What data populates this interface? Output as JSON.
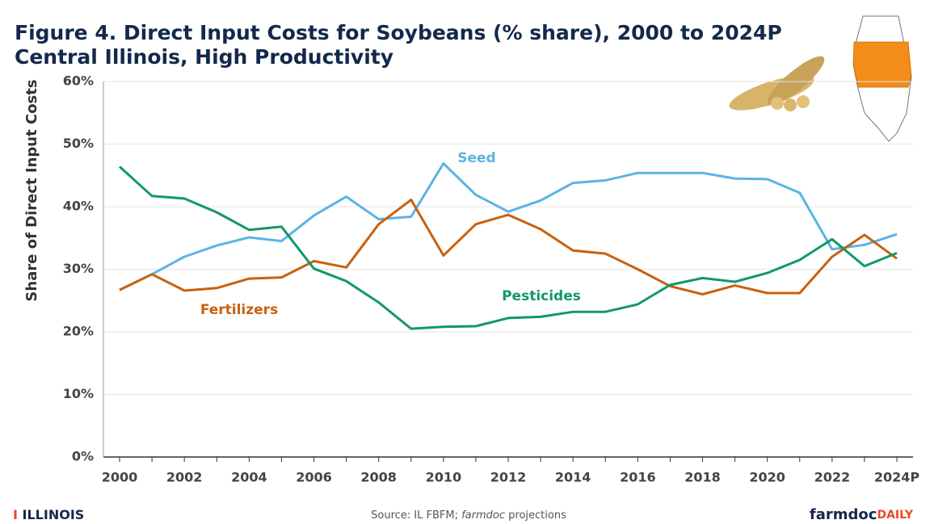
{
  "chart_data": {
    "type": "line",
    "title": "Figure 4. Direct Input Costs for Soybeans (% share), 2000 to 2024P",
    "subtitle": "Central Illinois, High Productivity",
    "y_label": "Share of Direct Input Costs",
    "categories": [
      "2000",
      null,
      "2002",
      null,
      "2004",
      null,
      "2006",
      null,
      "2008",
      null,
      "2010",
      null,
      "2012",
      null,
      "2014",
      null,
      "2016",
      null,
      "2018",
      null,
      "2020",
      null,
      "2022",
      null,
      "2024P"
    ],
    "series": [
      {
        "name": "Seed",
        "color": "#5ab4e5",
        "values": [
          26.7,
          29.2,
          32.0,
          33.8,
          35.1,
          34.5,
          38.6,
          41.6,
          38.0,
          38.4,
          46.9,
          41.9,
          39.2,
          41.0,
          43.8,
          44.2,
          45.4,
          45.4,
          45.4,
          44.5,
          44.4,
          42.2,
          33.2,
          33.9,
          35.6
        ]
      },
      {
        "name": "Fertilizers",
        "color": "#c8610f",
        "values": [
          26.7,
          29.2,
          26.6,
          27.0,
          28.5,
          28.7,
          31.3,
          30.3,
          37.2,
          41.1,
          32.2,
          37.2,
          38.7,
          36.4,
          33.0,
          32.5,
          30.0,
          27.3,
          26.0,
          27.4,
          26.2,
          26.2,
          32.0,
          35.5,
          31.7
        ]
      },
      {
        "name": "Pesticides",
        "color": "#12976b",
        "values": [
          46.4,
          41.7,
          41.3,
          39.1,
          36.3,
          36.8,
          30.1,
          28.1,
          24.7,
          20.5,
          20.8,
          20.9,
          22.2,
          22.4,
          23.2,
          23.2,
          24.4,
          27.5,
          28.6,
          28.0,
          29.4,
          31.5,
          34.8,
          30.5,
          32.6
        ]
      }
    ],
    "ylim": [
      0,
      60
    ],
    "yticks": [
      {
        "value": 0,
        "label": "0%"
      },
      {
        "value": 10,
        "label": "10%"
      },
      {
        "value": 20,
        "label": "20%"
      },
      {
        "value": 30,
        "label": "30%"
      },
      {
        "value": 40,
        "label": "40%"
      },
      {
        "value": 50,
        "label": "50%"
      },
      {
        "value": 60,
        "label": "60%"
      }
    ],
    "grid": true
  },
  "footer": {
    "brand": "ILLINOIS",
    "source": [
      "Source: IL FBFM; ",
      "farmdoc",
      " projections"
    ],
    "logo": [
      "farmdoc",
      "DAILY"
    ]
  }
}
